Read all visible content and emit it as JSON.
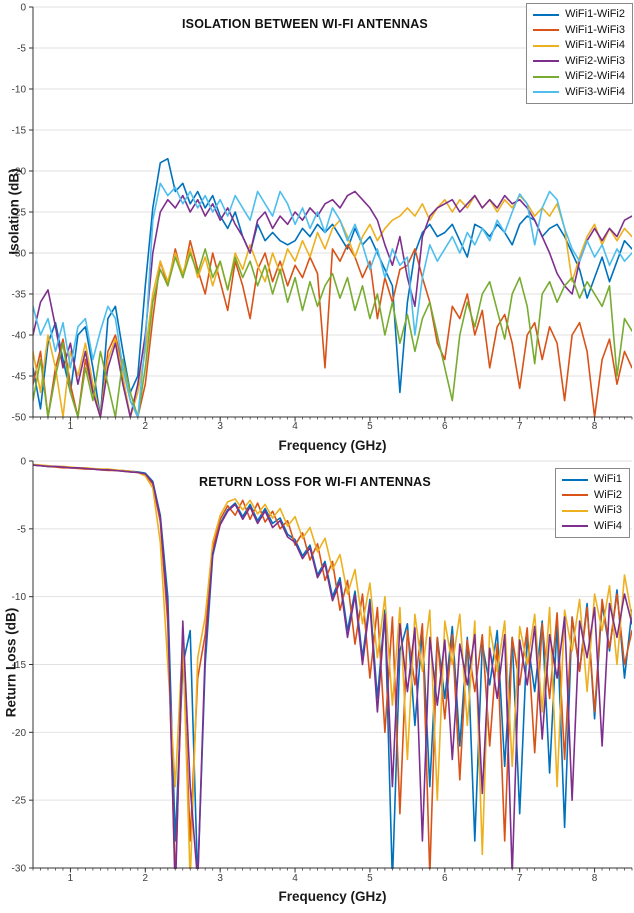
{
  "chart_data": [
    {
      "type": "line",
      "title": "ISOLATION BETWEEN WI-FI ANTENNAS",
      "xlabel": "Frequency (GHz)",
      "ylabel": "Isolation (dB)",
      "xlim": [
        0.5,
        8.5
      ],
      "ylim": [
        -50,
        0
      ],
      "xticks": [
        1,
        2,
        3,
        4,
        5,
        6,
        7,
        8
      ],
      "yticks": [
        0,
        -5,
        -10,
        -15,
        -20,
        -25,
        -30,
        -35,
        -40,
        -45,
        -50
      ],
      "x_minor_step": 0.1,
      "grid": "horizontal",
      "legend_position": "top-right",
      "x_start": 0.5,
      "x_step": 0.1,
      "series": [
        {
          "name": "WiFi1-WiFi2",
          "color": "#0072BD",
          "values": [
            -44,
            -49,
            -41,
            -38.5,
            -43,
            -47,
            -40,
            -39,
            -44,
            -50,
            -38,
            -36.5,
            -42,
            -47,
            -45,
            -34,
            -24.5,
            -19,
            -18.5,
            -22.5,
            -21.5,
            -24,
            -22.5,
            -24.5,
            -23,
            -25.5,
            -27,
            -25,
            -28,
            -30,
            -26.5,
            -28.5,
            -27.5,
            -28.5,
            -29,
            -28.5,
            -27,
            -28,
            -26.5,
            -27.5,
            -26.5,
            -28,
            -29.5,
            -27,
            -29,
            -28,
            -30,
            -32,
            -34,
            -47,
            -36,
            -30,
            -27.5,
            -26.5,
            -28,
            -27.5,
            -26.5,
            -28.5,
            -30.5,
            -26.5,
            -27,
            -28,
            -26.5,
            -27.5,
            -29,
            -26.5,
            -25.5,
            -26,
            -28,
            -27,
            -26.5,
            -28,
            -30,
            -32,
            -35.5,
            -33,
            -30.5,
            -33.5,
            -31,
            -28.5,
            -29.5
          ]
        },
        {
          "name": "WiFi1-WiFi3",
          "color": "#D95319",
          "values": [
            -46,
            -42,
            -50,
            -44,
            -40.5,
            -46,
            -50,
            -43,
            -47,
            -50,
            -42,
            -40,
            -44,
            -48,
            -50,
            -46,
            -38,
            -31,
            -34,
            -29.5,
            -33,
            -28.5,
            -32,
            -35,
            -30,
            -33.5,
            -37,
            -31,
            -34,
            -38,
            -32,
            -30,
            -33.5,
            -31,
            -34,
            -31.5,
            -33,
            -30.5,
            -32.5,
            -44,
            -29.5,
            -31,
            -29,
            -30.5,
            -33,
            -31,
            -38,
            -33,
            -36,
            -32,
            -31.5,
            -29.5,
            -33,
            -36,
            -41,
            -43,
            -36.5,
            -38,
            -35,
            -40,
            -37,
            -44,
            -39,
            -37.5,
            -41,
            -46.5,
            -40,
            -38.5,
            -43,
            -39,
            -41,
            -48,
            -40,
            -38.5,
            -42,
            -50,
            -43,
            -40.5,
            -46,
            -42,
            -44
          ]
        },
        {
          "name": "WiFi1-WiFi4",
          "color": "#EDB120",
          "values": [
            -42,
            -47,
            -40,
            -44,
            -50,
            -42,
            -45,
            -41,
            -46,
            -50,
            -43,
            -40.5,
            -45,
            -50,
            -47,
            -42,
            -35,
            -31,
            -33.5,
            -30,
            -32.5,
            -29.5,
            -33,
            -30.5,
            -34,
            -31,
            -34.5,
            -30,
            -32,
            -29,
            -31.5,
            -33.5,
            -30,
            -32.5,
            -29.5,
            -31,
            -28.5,
            -30.5,
            -27.5,
            -29.5,
            -27,
            -26,
            -28,
            -30.5,
            -28,
            -26.5,
            -28.5,
            -27,
            -26,
            -25.5,
            -24.5,
            -25.5,
            -24,
            -26,
            -24.5,
            -23.5,
            -25,
            -23.5,
            -24.5,
            -23,
            -24.5,
            -23.5,
            -25,
            -23.5,
            -24.5,
            -23,
            -24,
            -25.5,
            -24.5,
            -25.5,
            -24,
            -27,
            -33.5,
            -30.5,
            -28,
            -26.5,
            -29,
            -27,
            -28.5,
            -27,
            -28
          ]
        },
        {
          "name": "WiFi2-WiFi3",
          "color": "#7E2F8E",
          "values": [
            -40,
            -36,
            -34.5,
            -39,
            -44,
            -41,
            -46,
            -42,
            -47,
            -50,
            -44,
            -41,
            -46,
            -50,
            -46,
            -40,
            -30,
            -25,
            -23.5,
            -24.5,
            -23,
            -25,
            -23.5,
            -25.5,
            -24,
            -26,
            -24.5,
            -26.5,
            -28,
            -30,
            -26,
            -25,
            -27,
            -25.5,
            -26.5,
            -25,
            -26,
            -24.5,
            -25.5,
            -24,
            -23.5,
            -24.5,
            -23,
            -22.5,
            -23.5,
            -24.5,
            -26,
            -29,
            -31.5,
            -28,
            -33,
            -36.5,
            -28,
            -25.5,
            -24.5,
            -24,
            -23.5,
            -25,
            -24,
            -23,
            -24.5,
            -23.5,
            -24.5,
            -23,
            -24,
            -23.5,
            -24.5,
            -26,
            -28,
            -30,
            -32.5,
            -34,
            -35,
            -31,
            -28.5,
            -27,
            -28.5,
            -27,
            -28,
            -26,
            -25.5
          ]
        },
        {
          "name": "WiFi2-WiFi4",
          "color": "#77AC30",
          "values": [
            -48,
            -43,
            -50,
            -45,
            -41,
            -47,
            -50,
            -44,
            -48,
            -42,
            -46,
            -50,
            -43,
            -47,
            -50,
            -44,
            -36,
            -32,
            -34,
            -30.5,
            -33,
            -30,
            -32.5,
            -29.5,
            -33,
            -31,
            -34.5,
            -30.5,
            -33,
            -31,
            -34,
            -31.5,
            -35,
            -32,
            -36,
            -33,
            -37,
            -33.5,
            -36.5,
            -34,
            -32.5,
            -35.5,
            -33,
            -37,
            -34,
            -38,
            -35,
            -40,
            -36,
            -41,
            -37.5,
            -42,
            -38,
            -36,
            -40,
            -44,
            -48,
            -40,
            -36,
            -39,
            -35,
            -33.5,
            -37,
            -40.5,
            -35,
            -33,
            -36.5,
            -43.5,
            -35,
            -33.5,
            -36,
            -34,
            -33,
            -35.5,
            -33.5,
            -35,
            -36.5,
            -34,
            -45,
            -38,
            -39.5
          ]
        },
        {
          "name": "WiFi3-WiFi4",
          "color": "#4DBEEE",
          "values": [
            -36.5,
            -40,
            -38,
            -42,
            -38.5,
            -44,
            -39,
            -38,
            -43,
            -39.5,
            -36.5,
            -38,
            -44,
            -48,
            -50,
            -41,
            -26,
            -21.5,
            -23,
            -22,
            -24,
            -22.5,
            -24.5,
            -23,
            -25,
            -23.5,
            -25.5,
            -23,
            -24.5,
            -26,
            -22.5,
            -24,
            -25.5,
            -22.5,
            -24,
            -26.5,
            -24.5,
            -27,
            -25,
            -27.5,
            -24.5,
            -26,
            -28.5,
            -26.5,
            -29,
            -32,
            -29.5,
            -33,
            -29.5,
            -31.5,
            -30.5,
            -40,
            -33,
            -29,
            -31,
            -29.5,
            -28,
            -30,
            -27.5,
            -29,
            -27,
            -28.5,
            -26,
            -27.5,
            -25,
            -22.8,
            -24,
            -29,
            -24.5,
            -22.5,
            -23.5,
            -27,
            -29.5,
            -31,
            -28.5,
            -30.5,
            -29,
            -31.5,
            -29.5,
            -31,
            -30
          ]
        }
      ]
    },
    {
      "type": "line",
      "title": "RETURN LOSS FOR WI-FI ANTENNAS",
      "xlabel": "Frequency (GHz)",
      "ylabel": "Return Loss (dB)",
      "xlim": [
        0.5,
        8.5
      ],
      "ylim": [
        -30,
        0
      ],
      "xticks": [
        1,
        2,
        3,
        4,
        5,
        6,
        7,
        8
      ],
      "yticks": [
        0,
        -5,
        -10,
        -15,
        -20,
        -25,
        -30
      ],
      "x_minor_step": 0.1,
      "grid": "horizontal",
      "legend_position": "top-right",
      "x_start": 0.5,
      "x_step": 0.1,
      "series": [
        {
          "name": "WiFi1",
          "color": "#0072BD",
          "values": [
            -0.3,
            -0.35,
            -0.4,
            -0.4,
            -0.45,
            -0.5,
            -0.5,
            -0.55,
            -0.6,
            -0.6,
            -0.65,
            -0.7,
            -0.7,
            -0.75,
            -0.8,
            -0.9,
            -1.5,
            -4,
            -10,
            -28,
            -15,
            -12.5,
            -31,
            -15,
            -7,
            -4.6,
            -3.6,
            -3.1,
            -4.1,
            -3.2,
            -4.4,
            -3.5,
            -4.6,
            -4.2,
            -5.4,
            -5.8,
            -7,
            -6.2,
            -8.4,
            -7.4,
            -10,
            -8.6,
            -12.5,
            -9.6,
            -14.5,
            -10.2,
            -17.5,
            -11,
            -31,
            -14,
            -12,
            -19.5,
            -12.5,
            -24,
            -13,
            -17.5,
            -12.2,
            -21,
            -13,
            -28,
            -13.5,
            -16.5,
            -12.5,
            -22.5,
            -13,
            -26,
            -13,
            -17,
            -11.8,
            -23,
            -12,
            -27,
            -11.5,
            -15.5,
            -10.5,
            -19,
            -10.5,
            -14,
            -9.5,
            -16,
            -11
          ]
        },
        {
          "name": "WiFi2",
          "color": "#D95319",
          "values": [
            -0.3,
            -0.35,
            -0.4,
            -0.45,
            -0.5,
            -0.5,
            -0.55,
            -0.6,
            -0.6,
            -0.65,
            -0.7,
            -0.7,
            -0.75,
            -0.8,
            -0.85,
            -1,
            -1.7,
            -4.5,
            -12,
            -31,
            -13.5,
            -28,
            -16,
            -12.8,
            -6.5,
            -4.3,
            -3.3,
            -4,
            -2.9,
            -4.3,
            -3.1,
            -4.5,
            -3.7,
            -5,
            -4.4,
            -6.2,
            -5.3,
            -7.3,
            -6.1,
            -8.8,
            -7.4,
            -11,
            -8.8,
            -13.5,
            -9.8,
            -16,
            -10.8,
            -20,
            -11.5,
            -26,
            -12.5,
            -16.5,
            -12,
            -30.5,
            -13,
            -19,
            -12.8,
            -23.5,
            -13.2,
            -17,
            -12.8,
            -21,
            -13.5,
            -28,
            -13,
            -16.5,
            -12.3,
            -21.5,
            -12,
            -17.5,
            -11.2,
            -22,
            -11.5,
            -15.5,
            -10.8,
            -18.5,
            -10.2,
            -13.8,
            -9.8,
            -15,
            -12.5
          ]
        },
        {
          "name": "WiFi3",
          "color": "#EDB120",
          "values": [
            -0.25,
            -0.3,
            -0.35,
            -0.4,
            -0.4,
            -0.45,
            -0.5,
            -0.5,
            -0.55,
            -0.6,
            -0.6,
            -0.65,
            -0.7,
            -0.75,
            -0.85,
            -1.1,
            -2,
            -6,
            -15,
            -24,
            -13,
            -31,
            -14.5,
            -11.5,
            -6,
            -4,
            -3,
            -2.8,
            -3.6,
            -2.9,
            -3.9,
            -3.2,
            -4.2,
            -3.5,
            -4.8,
            -4.1,
            -5.7,
            -4.9,
            -6.7,
            -5.7,
            -8,
            -6.9,
            -9.8,
            -8,
            -12,
            -9,
            -14.5,
            -10,
            -18,
            -10.8,
            -22,
            -11.3,
            -15.5,
            -11,
            -25,
            -11.8,
            -15,
            -11.3,
            -19.5,
            -11.8,
            -29,
            -12.2,
            -15.5,
            -11.8,
            -22.5,
            -12.2,
            -15,
            -11.3,
            -18.5,
            -10.8,
            -24,
            -11,
            -14,
            -10.2,
            -17,
            -9.8,
            -12.5,
            -9.2,
            -15,
            -8.4,
            -11.5
          ]
        },
        {
          "name": "WiFi4",
          "color": "#7E2F8E",
          "values": [
            -0.3,
            -0.35,
            -0.4,
            -0.4,
            -0.45,
            -0.5,
            -0.5,
            -0.55,
            -0.6,
            -0.65,
            -0.65,
            -0.7,
            -0.75,
            -0.8,
            -0.85,
            -0.95,
            -1.6,
            -4.2,
            -11,
            -32,
            -11.8,
            -24,
            -31,
            -14,
            -6.8,
            -4.7,
            -3.7,
            -3.2,
            -4.3,
            -3.4,
            -4.6,
            -3.7,
            -4.9,
            -4.4,
            -5.6,
            -6,
            -7.2,
            -6.4,
            -8.6,
            -7.6,
            -10.3,
            -8.9,
            -13,
            -9.9,
            -15,
            -10.5,
            -18.5,
            -11.3,
            -24,
            -12,
            -17,
            -12.3,
            -28,
            -13,
            -18,
            -13.2,
            -22,
            -13.5,
            -16.5,
            -12.8,
            -24.5,
            -13.8,
            -17.5,
            -12.8,
            -30.5,
            -13.2,
            -16.5,
            -12.2,
            -20.5,
            -12.8,
            -16,
            -11.5,
            -25,
            -11.8,
            -14.5,
            -10.8,
            -21,
            -10.5,
            -13,
            -9.8,
            -12
          ]
        }
      ]
    }
  ]
}
